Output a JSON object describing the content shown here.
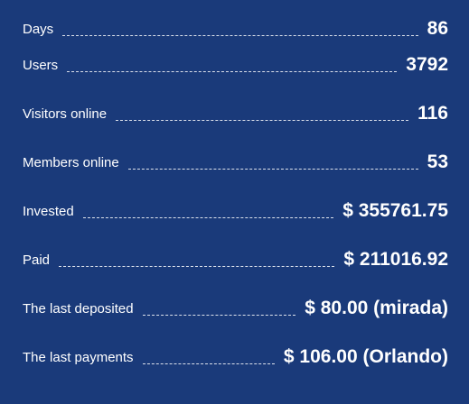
{
  "stats": [
    {
      "label": "Days",
      "value": "86"
    },
    {
      "label": "Users",
      "value": "3792"
    },
    {
      "label": "Visitors online",
      "value": "116"
    },
    {
      "label": "Members online",
      "value": "53"
    },
    {
      "label": "Invested",
      "value": "$ 355761.75"
    },
    {
      "label": "Paid",
      "value": "$ 211016.92"
    },
    {
      "label": "The last deposited",
      "value": "$ 80.00 (mirada)"
    },
    {
      "label": "The last payments",
      "value": "$ 106.00 (Orlando)"
    }
  ]
}
